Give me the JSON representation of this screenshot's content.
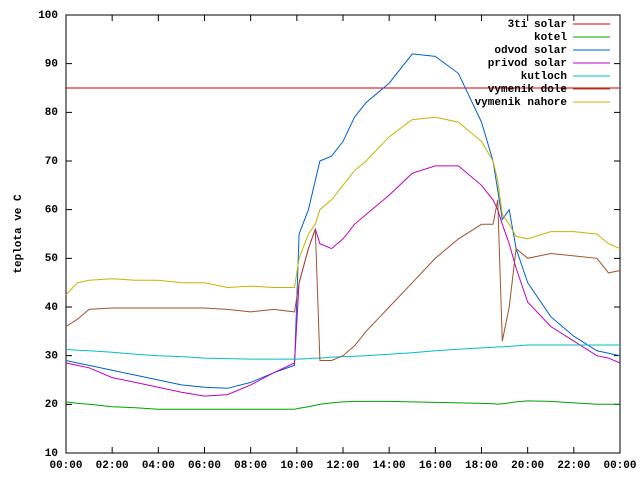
{
  "chart_data": {
    "type": "line",
    "ylabel": "teplota ve C",
    "x": [
      0,
      0.5,
      1,
      2,
      3,
      4,
      5,
      6,
      7,
      8,
      9,
      9.9,
      10.1,
      10.5,
      10.8,
      11,
      11.5,
      12,
      12.5,
      13,
      14,
      15,
      16,
      17,
      18,
      18.5,
      18.7,
      18.9,
      19.2,
      19.5,
      20,
      21,
      22,
      23,
      23.5,
      24
    ],
    "series": [
      {
        "name": "3ti solar",
        "color": "#d00000",
        "values": [
          85,
          85,
          85,
          85,
          85,
          85,
          85,
          85,
          85,
          85,
          85,
          85,
          85,
          85,
          85,
          85,
          85,
          85,
          85,
          85,
          85,
          85,
          85,
          85,
          85,
          85,
          85,
          85,
          85,
          85,
          85,
          85,
          85,
          85,
          85,
          85
        ]
      },
      {
        "name": "kotel",
        "color": "#00a000",
        "values": [
          20.5,
          20.2,
          20,
          19.5,
          19.3,
          19,
          19,
          19,
          19,
          19,
          19,
          19,
          19.2,
          19.5,
          19.8,
          20,
          20.3,
          20.5,
          20.6,
          20.6,
          20.6,
          20.5,
          20.4,
          20.3,
          20.2,
          20.1,
          20,
          20.1,
          20.3,
          20.5,
          20.7,
          20.6,
          20.3,
          20,
          20,
          20
        ]
      },
      {
        "name": "odvod solar",
        "color": "#0060d0",
        "values": [
          29,
          28.5,
          28,
          27,
          26,
          25,
          24,
          23.5,
          23.3,
          24.5,
          26.5,
          28,
          55,
          60,
          66,
          70,
          71,
          74,
          79,
          82,
          86,
          92,
          91.5,
          88,
          78,
          70,
          64,
          58,
          60,
          52,
          45,
          38,
          34,
          31,
          30.5,
          30
        ]
      },
      {
        "name": "privod solar",
        "color": "#c000c0",
        "values": [
          28.5,
          28,
          27.5,
          25.5,
          24.5,
          23.5,
          22.5,
          21.7,
          22,
          24,
          26.5,
          28.5,
          45,
          52,
          56,
          53,
          52,
          54,
          57,
          59,
          63,
          67.5,
          69,
          69,
          65,
          62,
          60,
          57,
          53,
          48,
          41,
          36,
          33,
          30,
          29.5,
          28.5
        ]
      },
      {
        "name": "kutloch",
        "color": "#00c0c0",
        "values": [
          31.3,
          31.1,
          31,
          30.7,
          30.3,
          30,
          29.8,
          29.5,
          29.4,
          29.3,
          29.3,
          29.3,
          29.3,
          29.4,
          29.5,
          29.5,
          29.7,
          29.8,
          29.9,
          30,
          30.3,
          30.6,
          31,
          31.3,
          31.6,
          31.7,
          31.8,
          31.8,
          31.9,
          32,
          32.2,
          32.2,
          32.2,
          32.2,
          32.2,
          32.2
        ]
      },
      {
        "name": "vymenik dole",
        "color": "#a0522d",
        "values": [
          36,
          37.5,
          39.5,
          39.8,
          39.8,
          39.8,
          39.8,
          39.8,
          39.5,
          39,
          39.5,
          39,
          45,
          52,
          56,
          29,
          29,
          30,
          32,
          35,
          40,
          45,
          50,
          54,
          57,
          57,
          62,
          33,
          40,
          52,
          50,
          51,
          50.5,
          50,
          47,
          47.5
        ]
      },
      {
        "name": "vymenik nahore",
        "color": "#c8b400",
        "values": [
          42.5,
          45,
          45.5,
          45.8,
          45.5,
          45.5,
          45,
          45,
          44,
          44.3,
          44,
          44,
          50,
          55,
          57,
          60,
          62,
          65,
          68,
          70,
          75,
          78.5,
          79,
          78,
          74,
          70,
          66,
          59,
          57,
          54.5,
          54,
          55.5,
          55.5,
          55,
          53,
          52
        ]
      }
    ],
    "xlim": [
      0,
      24
    ],
    "xticks": [
      {
        "value": 0,
        "label": "00:00"
      },
      {
        "value": 2,
        "label": "02:00"
      },
      {
        "value": 4,
        "label": "04:00"
      },
      {
        "value": 6,
        "label": "06:00"
      },
      {
        "value": 8,
        "label": "08:00"
      },
      {
        "value": 10,
        "label": "10:00"
      },
      {
        "value": 12,
        "label": "12:00"
      },
      {
        "value": 14,
        "label": "14:00"
      },
      {
        "value": 16,
        "label": "16:00"
      },
      {
        "value": 18,
        "label": "18:00"
      },
      {
        "value": 20,
        "label": "20:00"
      },
      {
        "value": 22,
        "label": "22:00"
      },
      {
        "value": 24,
        "label": "00:00"
      }
    ],
    "ylim": [
      10,
      100
    ],
    "yticks": [
      10,
      20,
      30,
      40,
      50,
      60,
      70,
      80,
      90,
      100
    ],
    "legend": "upper-right"
  }
}
